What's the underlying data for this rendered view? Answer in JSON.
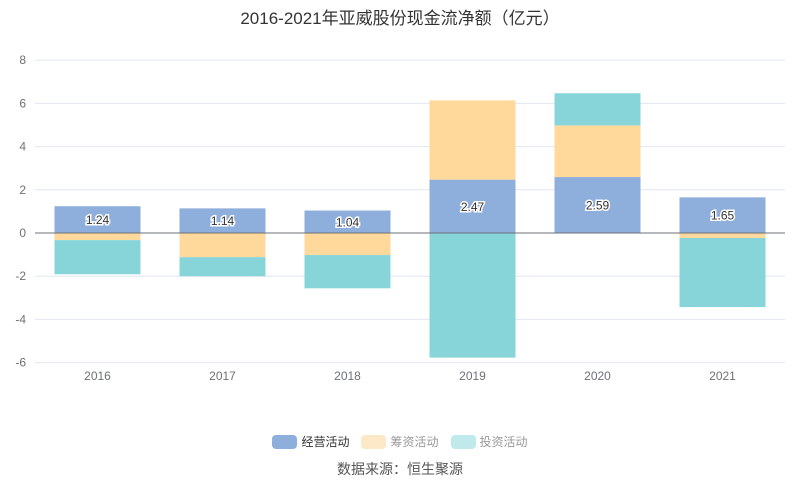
{
  "chart_data": {
    "type": "bar",
    "stacked": true,
    "title": "2016-2021年亚威股份现金流净额（亿元）",
    "categories": [
      "2016",
      "2017",
      "2018",
      "2019",
      "2020",
      "2021"
    ],
    "ylim": [
      -6,
      8
    ],
    "yticks": [
      -6,
      -4,
      -2,
      0,
      2,
      4,
      6,
      8
    ],
    "series": [
      {
        "name": "经营活动",
        "color": "#8eaedb",
        "values": [
          1.24,
          1.14,
          1.04,
          2.47,
          2.59,
          1.65
        ],
        "show_labels": true
      },
      {
        "name": "筹资活动",
        "color": "#ffd99b",
        "legend_color": "#fde9c8",
        "values": [
          -0.33,
          -1.12,
          -1.02,
          3.67,
          2.39,
          -0.23
        ]
      },
      {
        "name": "投资活动",
        "color": "#87d5d9",
        "legend_color": "#c0e9eb",
        "values": [
          -1.58,
          -0.88,
          -1.54,
          -5.77,
          1.49,
          -3.2
        ]
      }
    ],
    "legend_placement": "bottom",
    "grid": true
  },
  "source": "数据来源：恒生聚源"
}
